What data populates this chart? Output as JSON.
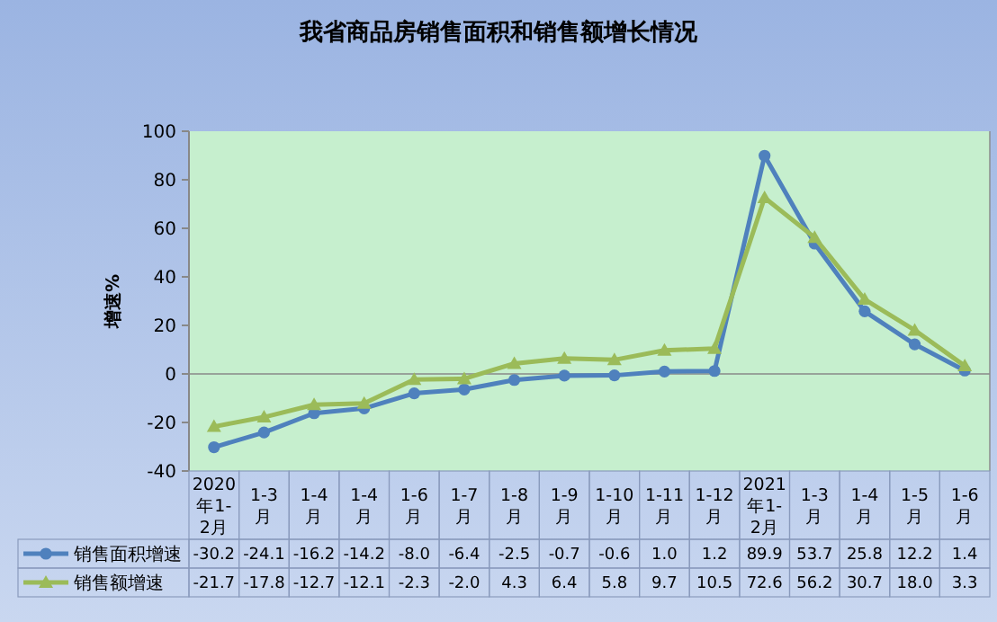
{
  "chart_data": {
    "type": "line",
    "title": "我省商品房销售面积和销售额增长情况",
    "ylabel": "增速%",
    "categories": [
      "2020年1-2月",
      "1-3月",
      "1-4月",
      "1-4月",
      "1-6月",
      "1-7月",
      "1-8月",
      "1-9月",
      "1-10月",
      "1-11月",
      "1-12月",
      "2021年1-2月",
      "1-3月",
      "1-4月",
      "1-5月",
      "1-6月"
    ],
    "series": [
      {
        "name": "销售面积增速",
        "color": "#4f81bd",
        "marker": "circle",
        "values": [
          -30.2,
          -24.1,
          -16.2,
          -14.2,
          -8.0,
          -6.4,
          -2.5,
          -0.7,
          -0.6,
          1.0,
          1.2,
          89.9,
          53.7,
          25.8,
          12.2,
          1.4
        ],
        "value_labels": [
          "-30.2",
          "-24.1",
          "-16.2",
          "-14.2",
          "-8.0",
          "-6.4",
          "-2.5",
          "-0.7",
          "-0.6",
          "1.0",
          "1.2",
          "89.9",
          "53.7",
          "25.8",
          "12.2",
          "1.4"
        ]
      },
      {
        "name": "销售额增速",
        "color": "#9bbb59",
        "marker": "triangle",
        "values": [
          -21.7,
          -17.8,
          -12.7,
          -12.1,
          -2.3,
          -2.0,
          4.3,
          6.4,
          5.8,
          9.7,
          10.5,
          72.6,
          56.2,
          30.7,
          18.0,
          3.3
        ],
        "value_labels": [
          "-21.7",
          "-17.8",
          "-12.7",
          "-12.1",
          "-2.3",
          "-2.0",
          "4.3",
          "6.4",
          "5.8",
          "9.7",
          "10.5",
          "72.6",
          "56.2",
          "30.7",
          "18.0",
          "3.3"
        ]
      }
    ],
    "ylim": [
      -40,
      100
    ],
    "yticks": [
      -40,
      -20,
      0,
      20,
      40,
      60,
      80,
      100
    ],
    "legend": "bottom",
    "line_style": "solid"
  }
}
